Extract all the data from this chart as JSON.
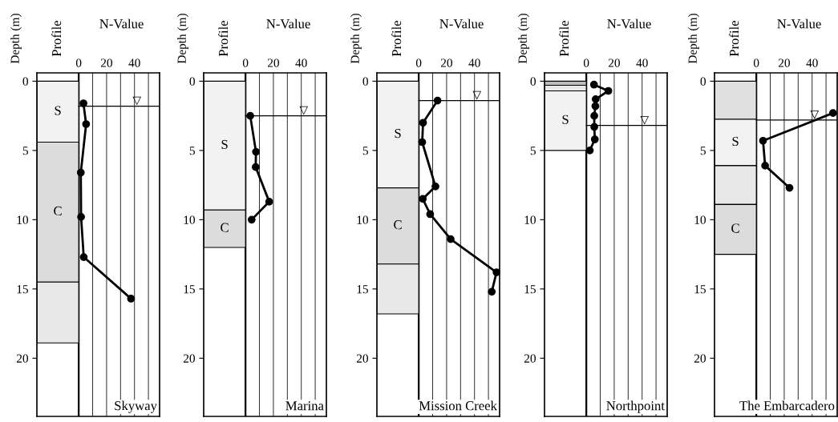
{
  "chart_data": [
    {
      "type": "line",
      "title": "Skyway",
      "xlabel": "N-Value",
      "ylabel": "Depth (m)",
      "annotations": [
        "Profile"
      ],
      "ref_lines": [
        {
          "axis": "y",
          "value": 1.8,
          "label": "▽"
        }
      ],
      "xlim": [
        -30,
        58
      ],
      "ylim": [
        24.2,
        -0.6
      ],
      "xticks": [
        0,
        {
          "value": 10,
          "label": null
        },
        20,
        {
          "value": 30,
          "label": null
        },
        40,
        {
          "value": 50,
          "label": null
        }
      ],
      "yticks": [
        0,
        5,
        10,
        15,
        20
      ],
      "grid": "x",
      "marker": "circle",
      "line_style": "solid",
      "series": [
        {
          "color": "#000000",
          "x": [
            3.4,
            5.3,
            1.5,
            1.7,
            3.6,
            37.5
          ],
          "values": [
            1.6,
            3.1,
            6.6,
            9.8,
            12.7,
            15.7
          ]
        }
      ],
      "bands": [
        {
          "axis": "y",
          "from": 0,
          "to": 4.4,
          "label": "S",
          "color": "#f2f2f2"
        },
        {
          "axis": "y",
          "from": 4.4,
          "to": 14.5,
          "label": "C",
          "color": "#dcdcdc"
        },
        {
          "axis": "y",
          "from": 14.5,
          "to": 18.9,
          "label": null,
          "color": "#e8e8e8"
        }
      ]
    },
    {
      "type": "line",
      "title": "Marina",
      "xlabel": "N-Value",
      "ylabel": "Depth (m)",
      "annotations": [
        "Profile"
      ],
      "ref_lines": [
        {
          "axis": "y",
          "value": 2.5,
          "label": "▽"
        }
      ],
      "xlim": [
        -30,
        58
      ],
      "ylim": [
        24.2,
        -0.6
      ],
      "xticks": [
        0,
        {
          "value": 10,
          "label": null
        },
        20,
        {
          "value": 30,
          "label": null
        },
        40,
        {
          "value": 50,
          "label": null
        }
      ],
      "yticks": [
        0,
        5,
        10,
        15,
        20
      ],
      "grid": "x",
      "marker": "circle",
      "line_style": "solid",
      "series": [
        {
          "color": "#000000",
          "x": [
            3.4,
            7.5,
            7.3,
            17,
            4.4
          ],
          "values": [
            2.5,
            5.1,
            6.2,
            8.7,
            10.0
          ]
        }
      ],
      "bands": [
        {
          "axis": "y",
          "from": 0,
          "to": 9.3,
          "label": "S",
          "color": "#f2f2f2"
        },
        {
          "axis": "y",
          "from": 9.3,
          "to": 12.0,
          "label": "C",
          "color": "#dcdcdc"
        }
      ]
    },
    {
      "type": "line",
      "title": "Mission Creek",
      "xlabel": "N-Value",
      "ylabel": "Depth (m)",
      "annotations": [
        "Profile"
      ],
      "ref_lines": [
        {
          "axis": "y",
          "value": 1.4,
          "label": "▽"
        }
      ],
      "xlim": [
        -30,
        58
      ],
      "ylim": [
        24.2,
        -0.6
      ],
      "xticks": [
        0,
        {
          "value": 10,
          "label": null
        },
        20,
        {
          "value": 30,
          "label": null
        },
        40,
        {
          "value": 50,
          "label": null
        }
      ],
      "yticks": [
        0,
        5,
        10,
        15,
        20
      ],
      "grid": "x",
      "marker": "circle",
      "line_style": "solid",
      "series": [
        {
          "color": "#000000",
          "x": [
            13.5,
            3.1,
            2.5,
            12,
            2.9,
            8.2,
            22.9,
            55.8,
            52.4
          ],
          "values": [
            1.4,
            3.0,
            4.4,
            7.6,
            8.5,
            9.6,
            11.4,
            13.8,
            15.2
          ]
        }
      ],
      "bands": [
        {
          "axis": "y",
          "from": 0,
          "to": 7.7,
          "label": "S",
          "color": "#f2f2f2"
        },
        {
          "axis": "y",
          "from": 7.7,
          "to": 13.2,
          "label": "C",
          "color": "#dcdcdc"
        },
        {
          "axis": "y",
          "from": 13.2,
          "to": 16.8,
          "label": null,
          "color": "#e8e8e8"
        }
      ]
    },
    {
      "type": "line",
      "title": "Northpoint",
      "xlabel": "N-Value",
      "ylabel": "Depth (m)",
      "annotations": [
        "Profile"
      ],
      "ref_lines": [
        {
          "axis": "y",
          "value": 3.2,
          "label": "▽"
        }
      ],
      "xlim": [
        -30,
        58
      ],
      "ylim": [
        24.2,
        -0.6
      ],
      "xticks": [
        0,
        {
          "value": 10,
          "label": null
        },
        20,
        {
          "value": 30,
          "label": null
        },
        40,
        {
          "value": 50,
          "label": null
        }
      ],
      "yticks": [
        0,
        5,
        10,
        15,
        20
      ],
      "grid": "x",
      "marker": "circle",
      "line_style": "solid",
      "series": [
        {
          "color": "#000000",
          "x": [
            5.5,
            15.8,
            6.7,
            6.5,
            5.7,
            5.7,
            6.1,
            2.5
          ],
          "values": [
            0.25,
            0.7,
            1.3,
            1.8,
            2.5,
            3.3,
            4.2,
            5.0
          ]
        }
      ],
      "bands": [
        {
          "axis": "y",
          "from": 0,
          "to": 0.3,
          "label": null,
          "color": "#bdbdbd"
        },
        {
          "axis": "y",
          "from": 0.3,
          "to": 0.7,
          "label": null,
          "color": "#e8e8e8"
        },
        {
          "axis": "y",
          "from": 0.7,
          "to": 5.0,
          "label": "S",
          "color": "#f2f2f2"
        }
      ]
    },
    {
      "type": "line",
      "title": "The Embarcadero",
      "xlabel": "N-Value",
      "ylabel": "Depth (m)",
      "annotations": [
        "Profile"
      ],
      "ref_lines": [
        {
          "axis": "y",
          "value": 2.8,
          "label": "▽"
        }
      ],
      "xlim": [
        -30,
        58
      ],
      "ylim": [
        24.2,
        -0.6
      ],
      "xticks": [
        0,
        {
          "value": 10,
          "label": null
        },
        20,
        {
          "value": 30,
          "label": null
        },
        40,
        {
          "value": 50,
          "label": null
        }
      ],
      "yticks": [
        0,
        5,
        10,
        15,
        20
      ],
      "grid": "x",
      "marker": "circle",
      "line_style": "solid",
      "series": [
        {
          "color": "#000000",
          "x": [
            55,
            4.8,
            6.3,
            23.8
          ],
          "values": [
            2.3,
            4.3,
            6.1,
            7.7
          ]
        }
      ],
      "bands": [
        {
          "axis": "y",
          "from": 0,
          "to": 2.75,
          "label": null,
          "color": "#e0e0e0"
        },
        {
          "axis": "y",
          "from": 2.75,
          "to": 6.1,
          "label": "S",
          "color": "#f2f2f2"
        },
        {
          "axis": "y",
          "from": 6.1,
          "to": 8.9,
          "label": null,
          "color": "#e8e8e8"
        },
        {
          "axis": "y",
          "from": 8.9,
          "to": 12.5,
          "label": "C",
          "color": "#dcdcdc"
        }
      ]
    }
  ]
}
